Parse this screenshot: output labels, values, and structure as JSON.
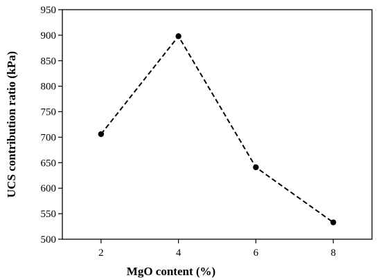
{
  "chart_data": {
    "type": "line",
    "title": "",
    "xlabel": "MgO content (%)",
    "ylabel": "UCS contribution ratio (kPa)",
    "x": [
      2,
      4,
      6,
      8
    ],
    "series": [
      {
        "values": [
          706,
          898,
          641,
          533
        ]
      }
    ],
    "xlim": [
      1,
      9
    ],
    "ylim": [
      500,
      950
    ],
    "xticks": [
      2,
      4,
      6,
      8
    ],
    "yticks": [
      500,
      550,
      600,
      650,
      700,
      750,
      800,
      850,
      900,
      950
    ],
    "line_style": "dashed",
    "marker": "filled-circle",
    "grid": false,
    "legend": "none",
    "colors": {
      "line": "#000000",
      "marker": "#000000",
      "axis": "#000000"
    }
  }
}
